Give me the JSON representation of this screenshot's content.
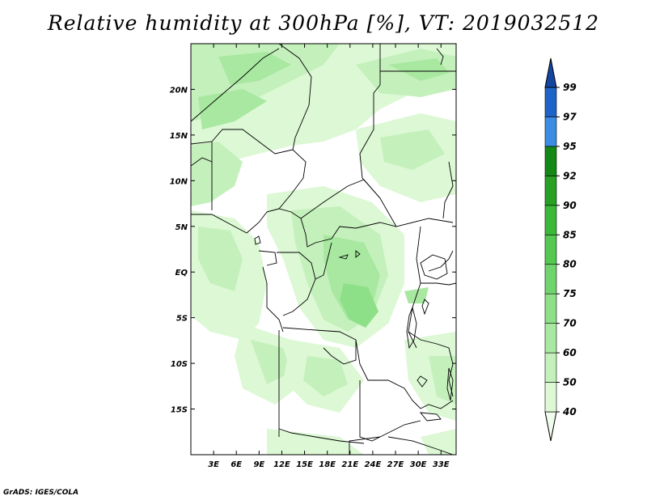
{
  "title": "Relative humidity at 300hPa [%], VT: 2019032512",
  "credit": "GrADS: IGES/COLA",
  "map": {
    "region": "Central Africa",
    "lon_range": [
      0,
      35
    ],
    "lat_range": [
      -20,
      25
    ],
    "lon_ticks": [
      "3E",
      "6E",
      "9E",
      "12E",
      "15E",
      "18E",
      "21E",
      "24E",
      "27E",
      "30E",
      "33E"
    ],
    "lat_ticks": [
      "20N",
      "15N",
      "10N",
      "5N",
      "EQ",
      "5S",
      "10S",
      "15S"
    ]
  },
  "colorbar": {
    "levels": [
      "40",
      "50",
      "60",
      "70",
      "75",
      "80",
      "85",
      "90",
      "92",
      "95",
      "97",
      "99"
    ],
    "colors": [
      "#f0fcec",
      "#dcf8d4",
      "#c4f0bc",
      "#a8e8a0",
      "#8ee088",
      "#70d46c",
      "#54c850",
      "#3cb838",
      "#28a024",
      "#148814",
      "#3c8ce4",
      "#1e64c8",
      "#1446a0"
    ]
  },
  "chart_data": {
    "type": "heatmap",
    "title": "Relative humidity at 300hPa [%], VT: 2019032512",
    "variable": "Relative humidity",
    "units": "%",
    "pressure_level": "300hPa",
    "valid_time": "2019032512",
    "x_ticks": [
      "3E",
      "6E",
      "9E",
      "12E",
      "15E",
      "18E",
      "21E",
      "24E",
      "27E",
      "30E",
      "33E"
    ],
    "y_ticks": [
      "20N",
      "15N",
      "10N",
      "5N",
      "EQ",
      "5S",
      "10S",
      "15S"
    ],
    "levels": [
      40,
      50,
      60,
      70,
      75,
      80,
      85,
      90,
      92,
      95,
      97,
      99
    ]
  }
}
